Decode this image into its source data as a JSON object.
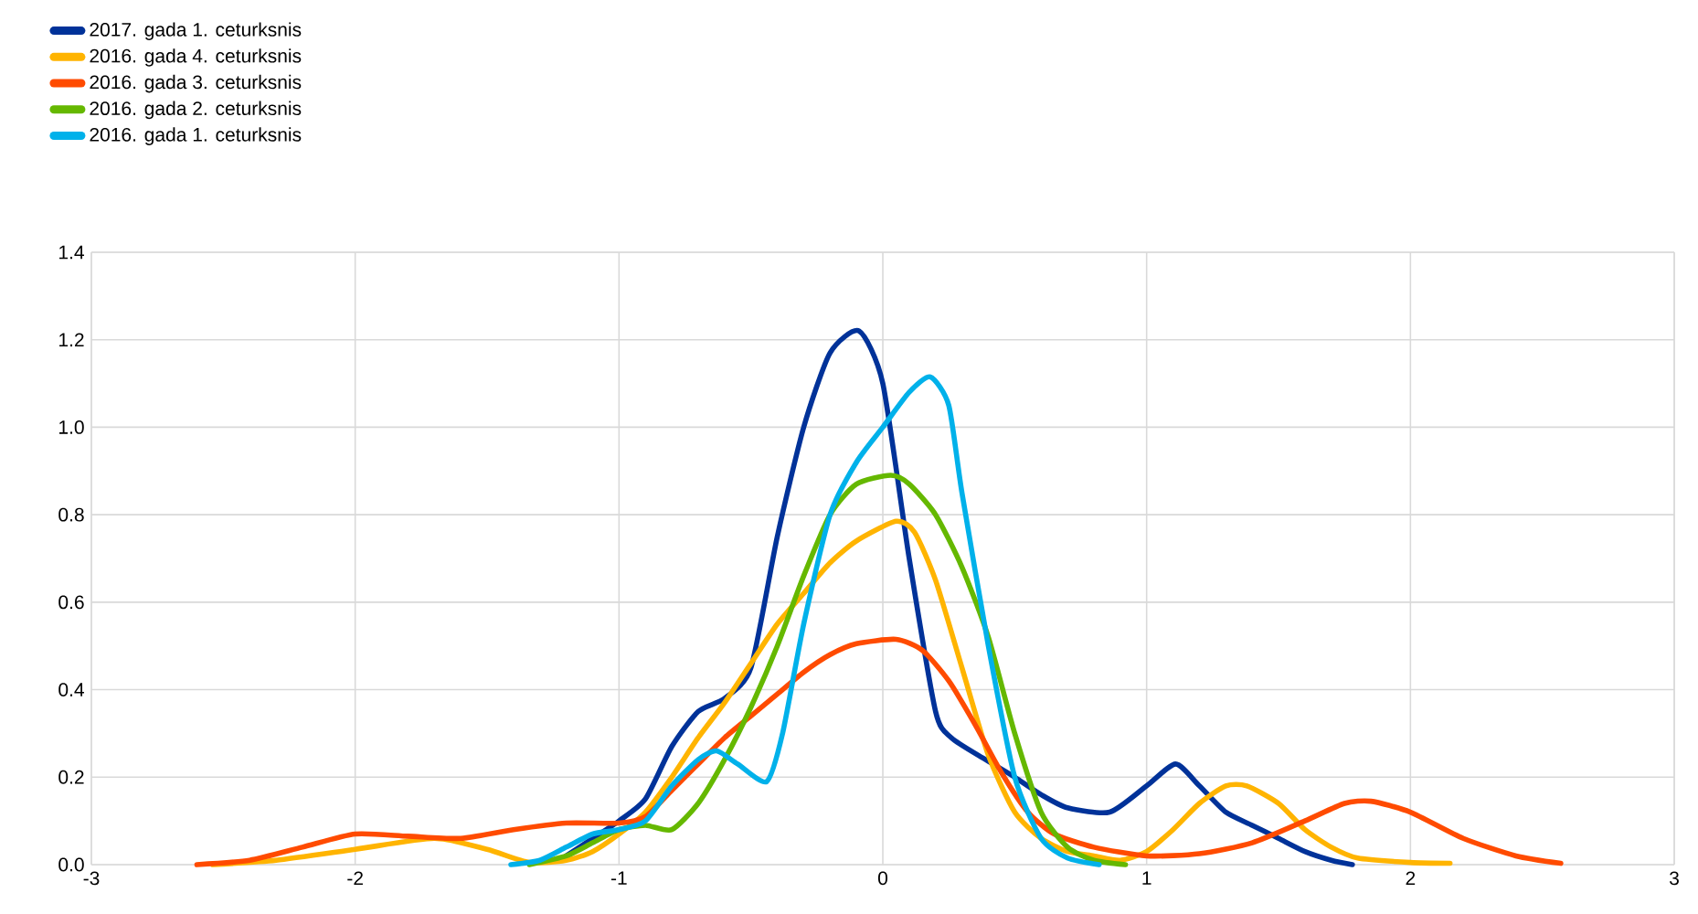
{
  "chart_data": {
    "type": "line",
    "xlim": [
      -3,
      3
    ],
    "ylim": [
      0,
      1.4
    ],
    "xticks": [
      -3,
      -2,
      -1,
      0,
      1,
      2,
      3
    ],
    "yticks": [
      {
        "value": 0,
        "label": "0.0"
      },
      {
        "value": 0.2,
        "label": "0.2"
      },
      {
        "value": 0.4,
        "label": "0.4"
      },
      {
        "value": 0.6,
        "label": "0.6"
      },
      {
        "value": 0.8,
        "label": "0.8"
      },
      {
        "value": 1.0,
        "label": "1.0"
      },
      {
        "value": 1.2,
        "label": "1.2"
      },
      {
        "value": 1.4,
        "label": "1.4"
      }
    ],
    "grid": true,
    "legend": "top left",
    "marker": "none",
    "line_style": "solid",
    "series": [
      {
        "name": "2017. gada 1. ceturksnis",
        "color": "#003299",
        "x": [
          -1.2,
          -1.1,
          -1.0,
          -0.9,
          -0.8,
          -0.7,
          -0.6,
          -0.5,
          -0.4,
          -0.3,
          -0.2,
          -0.09,
          0.0,
          0.1,
          0.2,
          0.26,
          0.39,
          0.5,
          0.6,
          0.7,
          0.86,
          1.0,
          1.11,
          1.2,
          1.3,
          1.4,
          1.5,
          1.6,
          1.7,
          1.78
        ],
        "values": [
          0.02,
          0.06,
          0.1,
          0.15,
          0.27,
          0.35,
          0.38,
          0.45,
          0.75,
          1.0,
          1.17,
          1.22,
          1.1,
          0.7,
          0.35,
          0.29,
          0.24,
          0.2,
          0.16,
          0.13,
          0.12,
          0.18,
          0.23,
          0.18,
          0.12,
          0.09,
          0.06,
          0.03,
          0.01,
          0.0
        ]
      },
      {
        "name": "2016. gada 4. ceturksnis",
        "color": "#ffb400",
        "x": [
          -2.54,
          -2.3,
          -2.0,
          -1.7,
          -1.5,
          -1.34,
          -1.2,
          -1.1,
          -1.0,
          -0.9,
          -0.8,
          -0.7,
          -0.6,
          -0.5,
          -0.4,
          -0.3,
          -0.2,
          -0.1,
          0.05,
          0.12,
          0.2,
          0.3,
          0.4,
          0.5,
          0.6,
          0.7,
          0.8,
          0.9,
          1.0,
          1.1,
          1.2,
          1.3,
          1.38,
          1.5,
          1.6,
          1.7,
          1.8,
          2.0,
          2.15
        ],
        "values": [
          0.0,
          0.01,
          0.035,
          0.06,
          0.035,
          0.005,
          0.01,
          0.03,
          0.07,
          0.12,
          0.2,
          0.29,
          0.37,
          0.46,
          0.55,
          0.62,
          0.69,
          0.74,
          0.785,
          0.76,
          0.65,
          0.45,
          0.25,
          0.12,
          0.06,
          0.03,
          0.02,
          0.01,
          0.03,
          0.08,
          0.14,
          0.18,
          0.18,
          0.14,
          0.08,
          0.04,
          0.015,
          0.005,
          0.003
        ]
      },
      {
        "name": "2016. gada 3. ceturksnis",
        "color": "#ff4b00",
        "x": [
          -2.6,
          -2.4,
          -2.2,
          -2.0,
          -1.8,
          -1.6,
          -1.4,
          -1.2,
          -1.0,
          -0.9,
          -0.8,
          -0.7,
          -0.6,
          -0.5,
          -0.4,
          -0.3,
          -0.2,
          -0.1,
          0.05,
          0.15,
          0.25,
          0.35,
          0.45,
          0.55,
          0.65,
          0.8,
          1.0,
          1.2,
          1.4,
          1.6,
          1.75,
          1.85,
          2.0,
          2.2,
          2.4,
          2.57
        ],
        "values": [
          0.0,
          0.01,
          0.04,
          0.07,
          0.065,
          0.06,
          0.08,
          0.095,
          0.095,
          0.11,
          0.17,
          0.23,
          0.29,
          0.34,
          0.39,
          0.44,
          0.48,
          0.505,
          0.515,
          0.49,
          0.42,
          0.32,
          0.21,
          0.12,
          0.07,
          0.04,
          0.02,
          0.025,
          0.05,
          0.1,
          0.14,
          0.145,
          0.12,
          0.06,
          0.02,
          0.003
        ]
      },
      {
        "name": "2016. gada 2. ceturksnis",
        "color": "#65b800",
        "x": [
          -1.34,
          -1.2,
          -1.1,
          -1.0,
          -0.9,
          -0.8,
          -0.7,
          -0.6,
          -0.5,
          -0.4,
          -0.3,
          -0.2,
          -0.1,
          0.03,
          0.1,
          0.2,
          0.3,
          0.4,
          0.5,
          0.6,
          0.7,
          0.8,
          0.92
        ],
        "values": [
          0.0,
          0.02,
          0.05,
          0.08,
          0.09,
          0.08,
          0.14,
          0.24,
          0.36,
          0.5,
          0.66,
          0.8,
          0.87,
          0.89,
          0.87,
          0.8,
          0.68,
          0.52,
          0.3,
          0.12,
          0.04,
          0.01,
          0.0
        ]
      },
      {
        "name": "2016. gada 1. ceturksnis",
        "color": "#00b1ea",
        "x": [
          -1.41,
          -1.3,
          -1.2,
          -1.1,
          -1.0,
          -0.9,
          -0.8,
          -0.7,
          -0.63,
          -0.55,
          -0.44,
          -0.38,
          -0.3,
          -0.2,
          -0.1,
          0.0,
          0.1,
          0.18,
          0.25,
          0.3,
          0.4,
          0.5,
          0.6,
          0.7,
          0.82
        ],
        "values": [
          0.0,
          0.01,
          0.04,
          0.07,
          0.08,
          0.1,
          0.18,
          0.24,
          0.26,
          0.23,
          0.19,
          0.3,
          0.55,
          0.8,
          0.92,
          1.0,
          1.08,
          1.115,
          1.05,
          0.85,
          0.5,
          0.2,
          0.06,
          0.015,
          0.0
        ]
      }
    ]
  }
}
